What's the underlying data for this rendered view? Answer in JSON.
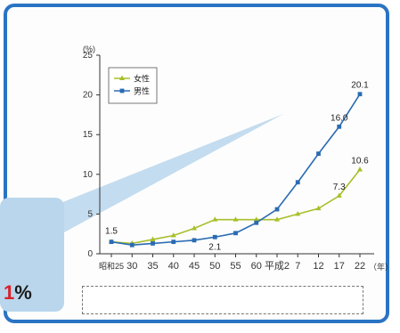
{
  "chart_data": {
    "type": "line",
    "ylabel": "(%)",
    "ylim": [
      0,
      25
    ],
    "yticks": [
      0,
      5,
      10,
      15,
      20,
      25
    ],
    "categories": [
      "昭和25",
      "30",
      "35",
      "40",
      "45",
      "50",
      "55",
      "60",
      "平成2",
      "7",
      "12",
      "17",
      "22"
    ],
    "xunit": "（年）",
    "series": [
      {
        "name": "女性",
        "color": "#a8bf2a",
        "values": [
          1.5,
          1.3,
          1.8,
          2.3,
          3.2,
          4.3,
          4.3,
          4.3,
          4.3,
          5.0,
          5.7,
          7.3,
          10.6
        ]
      },
      {
        "name": "男性",
        "color": "#2a6bb3",
        "values": [
          1.5,
          1.1,
          1.3,
          1.5,
          1.7,
          2.1,
          2.6,
          3.9,
          5.6,
          9.0,
          12.6,
          16.0,
          20.1
        ]
      }
    ],
    "data_labels": [
      {
        "series": 0,
        "index": 0,
        "text": "1.5"
      },
      {
        "series": 1,
        "index": 5,
        "text": "2.1"
      },
      {
        "series": 0,
        "index": 11,
        "text": "7.3"
      },
      {
        "series": 0,
        "index": 12,
        "text": "10.6"
      },
      {
        "series": 1,
        "index": 11,
        "text": "16.0"
      },
      {
        "series": 1,
        "index": 12,
        "text": "20.1"
      }
    ],
    "legend_position": "top-left",
    "grid": false
  },
  "callout": {
    "number": "1",
    "unit": "%"
  },
  "notes": [
    "",
    "",
    ""
  ],
  "colors": {
    "frame": "#2a74c4",
    "callout": "#b9d6ec",
    "callout_number": "#d8232a"
  }
}
